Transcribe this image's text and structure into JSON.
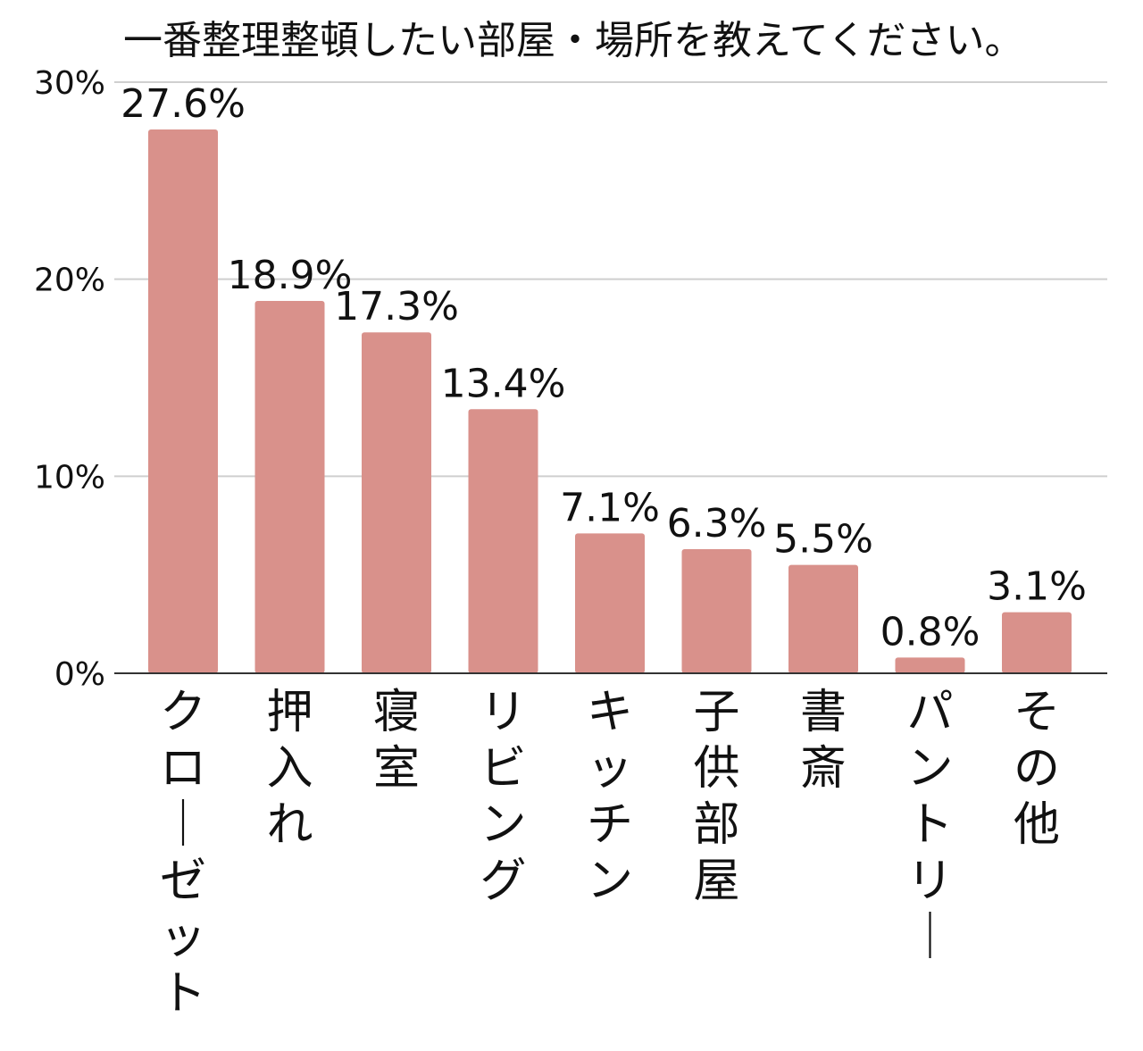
{
  "chart_data": {
    "type": "bar",
    "title": "一番整理整頓したい部屋・場所を教えてください。",
    "categories": [
      "クローゼット",
      "押入れ",
      "寝室",
      "リビング",
      "キッチン",
      "子供部屋",
      "書斎",
      "パントリー",
      "その他"
    ],
    "values": [
      27.6,
      18.9,
      17.3,
      13.4,
      7.1,
      6.3,
      5.5,
      0.8,
      3.1
    ],
    "data_labels": [
      "27.6%",
      "18.9%",
      "17.3%",
      "13.4%",
      "7.1%",
      "6.3%",
      "5.5%",
      "0.8%",
      "3.1%"
    ],
    "yticks": [
      0,
      10,
      20,
      30
    ],
    "ytick_labels": [
      "0%",
      "10%",
      "20%",
      "30%"
    ],
    "ylim": [
      0,
      30
    ],
    "grid": true,
    "legend": "none",
    "bar_color": "#d9918b"
  }
}
